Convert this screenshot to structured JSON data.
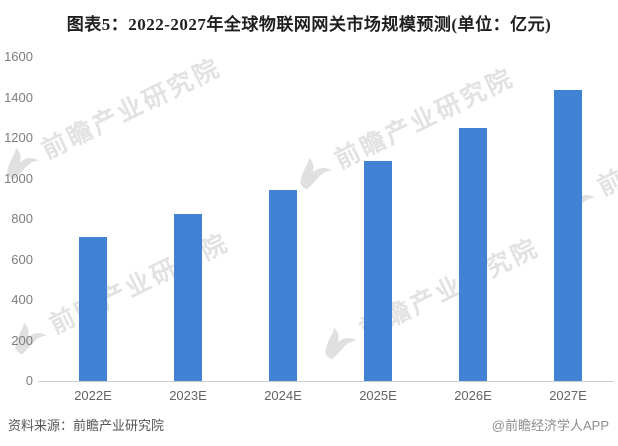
{
  "title": "图表5：2022-2027年全球物联网网关市场规模预测(单位：亿元)",
  "chart_data": {
    "type": "bar",
    "title": "图表5：2022-2027年全球物联网网关市场规模预测(单位：亿元)",
    "unit": "亿元",
    "categories": [
      "2022E",
      "2023E",
      "2024E",
      "2025E",
      "2026E",
      "2027E"
    ],
    "values": [
      710,
      825,
      945,
      1085,
      1250,
      1435
    ],
    "xlabel": "",
    "ylabel": "",
    "ylim": [
      0,
      1600
    ],
    "yticks": [
      0,
      200,
      400,
      600,
      800,
      1000,
      1200,
      1400,
      1600
    ],
    "grid": false,
    "legend": "none",
    "bar_color": "#4182d5",
    "axis_line_color": "#cccccc",
    "tick_label_color": "#7d7d7d"
  },
  "watermark": {
    "text": "前瞻产业研究院",
    "logo": "qianzhan-bird-icon"
  },
  "footer": {
    "source": "资料来源：前瞻产业研究院",
    "credit": "@前瞻经济学人APP"
  }
}
